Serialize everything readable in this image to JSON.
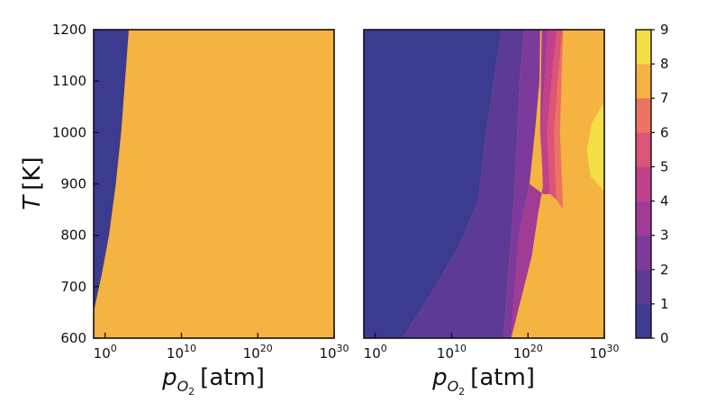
{
  "chart_data": [
    {
      "type": "heatmap",
      "panel": "left",
      "xlabel": "p",
      "xlabel_sub": "O",
      "xlabel_sub2": "2",
      "xlabel_unit": "[atm]",
      "ylabel": "T",
      "ylabel_unit": "[K]",
      "x_scale": "log",
      "xlim_exponent": [
        -1.5,
        30
      ],
      "ylim": [
        600,
        1200
      ],
      "x_tick_exponents": [
        0,
        10,
        20,
        30
      ],
      "y_ticks": [
        600,
        700,
        800,
        900,
        1000,
        1100,
        1200
      ],
      "regions": [
        {
          "level": 0,
          "color": "#3b3b8f",
          "boundary_log_pO2_vs_T": [
            [
              -1.5,
              651
            ],
            [
              -0.5,
              720
            ],
            [
              0.5,
              800
            ],
            [
              1.4,
              900
            ],
            [
              2.1,
              1000
            ],
            [
              2.6,
              1100
            ],
            [
              3.1,
              1200
            ]
          ]
        },
        {
          "level": 7,
          "color": "#f5b342"
        }
      ]
    },
    {
      "type": "heatmap",
      "panel": "right",
      "xlabel": "p",
      "xlabel_sub": "O",
      "xlabel_sub2": "2",
      "xlabel_unit": "[atm]",
      "x_scale": "log",
      "xlim_exponent": [
        -1.5,
        30
      ],
      "ylim": [
        600,
        1200
      ],
      "x_tick_exponents": [
        0,
        10,
        20,
        30
      ],
      "contour_levels": [
        0,
        1,
        2,
        3,
        4,
        5,
        6,
        7,
        8,
        9
      ],
      "band_colors": [
        "#3b3b8f",
        "#5c3a96",
        "#7e3a9a",
        "#a23b96",
        "#c2418a",
        "#dc5478",
        "#ec7262",
        "#f5b342",
        "#f3de46"
      ],
      "boundaries": {
        "b01": [
          [
            3.5,
            600
          ],
          [
            7,
            680
          ],
          [
            11,
            780
          ],
          [
            13.5,
            870
          ],
          [
            14.5,
            1000
          ],
          [
            15.5,
            1100
          ],
          [
            16.5,
            1200
          ]
        ],
        "b12": [
          [
            16.8,
            600
          ],
          [
            17.3,
            700
          ],
          [
            17.8,
            800
          ],
          [
            18.3,
            900
          ],
          [
            18.6,
            1000
          ],
          [
            18.9,
            1100
          ],
          [
            19.5,
            1200
          ]
        ],
        "b23": [
          [
            17.8,
            600
          ],
          [
            18.3,
            700
          ],
          [
            18.8,
            800
          ],
          [
            20.2,
            900
          ],
          [
            20.9,
            1000
          ],
          [
            21.5,
            1100
          ],
          [
            21.6,
            1200
          ]
        ],
        "b37": [
          [
            17.8,
            600
          ],
          [
            20.5,
            760
          ],
          [
            21.3,
            840
          ],
          [
            22.0,
            900
          ],
          [
            21.6,
            1000
          ],
          [
            21.7,
            1100
          ],
          [
            21.8,
            1200
          ]
        ],
        "b34": [
          [
            22.0,
            880
          ],
          [
            21.7,
            1000
          ],
          [
            22.2,
            1100
          ],
          [
            22.6,
            1200
          ]
        ],
        "b45": [
          [
            22.9,
            880
          ],
          [
            22.5,
            1000
          ],
          [
            23.1,
            1100
          ],
          [
            23.8,
            1200
          ]
        ],
        "b56": [
          [
            23.7,
            870
          ],
          [
            23.4,
            1000
          ],
          [
            23.9,
            1100
          ],
          [
            24.5,
            1200
          ]
        ],
        "b67": [
          [
            24.6,
            850
          ],
          [
            24.2,
            1000
          ],
          [
            24.4,
            1100
          ],
          [
            24.6,
            1200
          ]
        ],
        "yellow_region": [
          [
            30,
            885
          ],
          [
            28.2,
            915
          ],
          [
            27.7,
            965
          ],
          [
            28.4,
            1020
          ],
          [
            30,
            1060
          ]
        ]
      }
    }
  ],
  "colorbar": {
    "levels": [
      0,
      1,
      2,
      3,
      4,
      5,
      6,
      7,
      8,
      9
    ],
    "tick_labels": [
      "0",
      "1",
      "2",
      "3",
      "4",
      "5",
      "6",
      "7",
      "8",
      "9"
    ],
    "colors": [
      "#3b3b8f",
      "#5c3a96",
      "#7e3a9a",
      "#a23b96",
      "#c2418a",
      "#dc5478",
      "#ec7262",
      "#f5b342",
      "#f3de46"
    ]
  },
  "tick_base": "10"
}
